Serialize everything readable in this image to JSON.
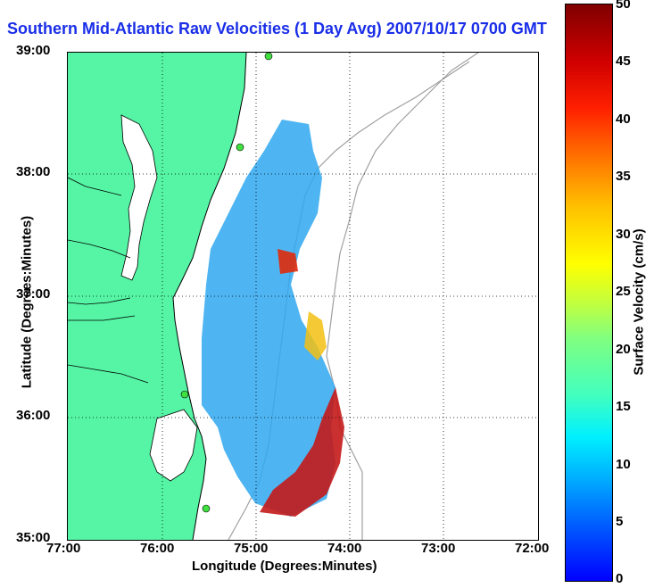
{
  "title": "Southern Mid-Atlantic Raw Velocities (1 Day Avg) 2007/10/17 0700 GMT",
  "ylabel": "Latitude (Degrees:Minutes)",
  "xlabel": "Longitude (Degrees:Minutes)",
  "lat_ticks": [
    "39:00",
    "38:00",
    "37:00",
    "36:00",
    "35:00"
  ],
  "lon_ticks": [
    "77:00",
    "76:00",
    "75:00",
    "74:00",
    "73:00",
    "72:00"
  ],
  "colorbar": {
    "label": "Surface Velocity (cm/s)",
    "ticks": [
      "50",
      "45",
      "40",
      "35",
      "30",
      "25",
      "20",
      "15",
      "10",
      "5",
      "0"
    ],
    "min": 0,
    "max": 50
  },
  "colors": {
    "land": "#55f5a5",
    "water": "#ffffff",
    "title": "#1a2ee8",
    "bathymetry": "#a0a0a0"
  }
}
